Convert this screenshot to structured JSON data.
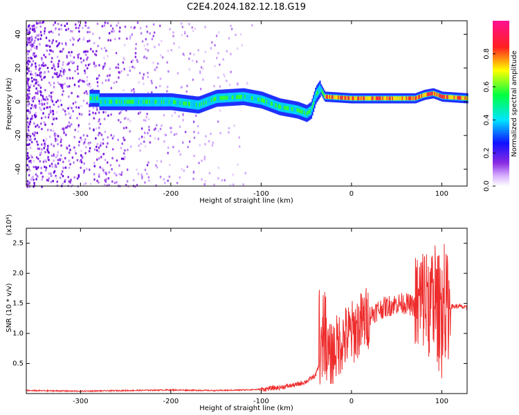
{
  "title": "C2E4.2024.182.12.18.G19",
  "colors": {
    "snr_line": "#ee2c2c",
    "spectrum_dots": "#8a2be2",
    "axis": "#000000"
  },
  "chart_data": [
    {
      "type": "heatmap",
      "panel": "top",
      "xlabel": "Height of straight line (km)",
      "ylabel": "Frequency (Hz)",
      "xlim": [
        -360,
        128
      ],
      "ylim": [
        -50,
        48
      ],
      "xticks": [
        -300,
        -200,
        -100,
        0,
        100
      ],
      "xtick_labels": [
        "-300",
        "-200",
        "-100",
        "0",
        "100"
      ],
      "yticks": [
        -40,
        -20,
        0,
        20,
        40
      ],
      "ytick_labels": [
        "-40",
        "-20",
        "0",
        "20",
        "40"
      ],
      "colorbar": {
        "label": "Normalized spectral amplitude",
        "range": [
          0,
          1
        ],
        "ticks": [
          0.0,
          0.2,
          0.4,
          0.6,
          0.8
        ],
        "tick_labels": [
          "0.0",
          "0.2",
          "0.4",
          "0.6",
          "0.8"
        ]
      },
      "ridge": {
        "description_points_x": [
          -280,
          -250,
          -200,
          -170,
          -150,
          -120,
          -100,
          -80,
          -60,
          -50,
          -45,
          -40,
          -35,
          -30,
          0,
          30,
          70,
          80,
          90,
          100,
          128
        ],
        "description_points_y": [
          0,
          0,
          0,
          -2,
          2,
          3,
          1,
          -3,
          -5,
          -7,
          -5,
          4,
          8,
          3,
          2,
          2,
          2,
          4,
          5,
          3,
          2
        ]
      }
    },
    {
      "type": "line",
      "panel": "bottom",
      "xlabel": "Height of straight line (km)",
      "ylabel": "SNR (10 * v/v)",
      "multiplier_label": "(x10⁴)",
      "xlim": [
        -360,
        128
      ],
      "ylim": [
        0,
        2.75
      ],
      "xticks": [
        -300,
        -200,
        -100,
        0,
        100
      ],
      "xtick_labels": [
        "-300",
        "-200",
        "-100",
        "0",
        "100"
      ],
      "yticks": [
        0.5,
        1.0,
        1.5,
        2.0,
        2.5
      ],
      "ytick_labels": [
        "0.5",
        "1.0",
        "1.5",
        "2.0",
        "2.5"
      ],
      "series": [
        {
          "x": [
            -360,
            -300,
            -250,
            -200,
            -150,
            -120,
            -100,
            -80,
            -60,
            -50,
            -40,
            -35,
            -30,
            -25,
            -20,
            -10,
            0,
            10,
            20,
            30,
            40,
            50,
            60,
            70,
            75,
            80,
            90,
            95,
            100,
            105,
            110,
            120,
            128
          ],
          "y": [
            0.05,
            0.04,
            0.05,
            0.06,
            0.05,
            0.06,
            0.07,
            0.1,
            0.15,
            0.2,
            0.3,
            0.5,
            0.9,
            0.6,
            0.7,
            0.9,
            1.0,
            1.15,
            1.3,
            1.4,
            1.45,
            1.5,
            1.5,
            1.45,
            1.5,
            1.6,
            1.4,
            1.4,
            1.5,
            1.45,
            1.45,
            1.45,
            1.42
          ]
        }
      ]
    }
  ]
}
